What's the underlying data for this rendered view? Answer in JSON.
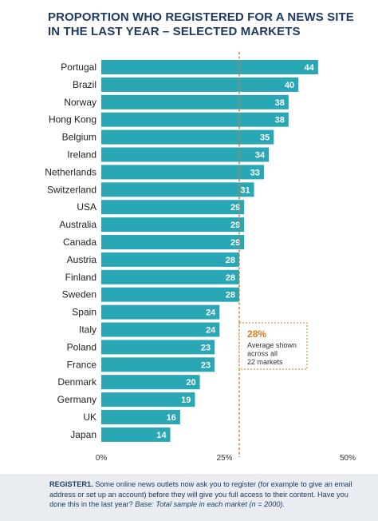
{
  "chart_data": {
    "type": "bar",
    "orientation": "horizontal",
    "title": "PROPORTION WHO REGISTERED FOR A NEWS SITE IN THE LAST YEAR – SELECTED MARKETS",
    "categories": [
      "Portugal",
      "Brazil",
      "Norway",
      "Hong Kong",
      "Belgium",
      "Ireland",
      "Netherlands",
      "Switzerland",
      "USA",
      "Australia",
      "Canada",
      "Austria",
      "Finland",
      "Sweden",
      "Spain",
      "Italy",
      "Poland",
      "France",
      "Denmark",
      "Germany",
      "UK",
      "Japan"
    ],
    "values": [
      44,
      40,
      38,
      38,
      35,
      34,
      33,
      31,
      29,
      29,
      29,
      28,
      28,
      28,
      24,
      24,
      23,
      23,
      20,
      19,
      16,
      14
    ],
    "xlim": [
      0,
      50
    ],
    "x_ticks": [
      "0%",
      "25%",
      "50%"
    ],
    "grid": false,
    "bar_color": "#2aa7b5",
    "reference_line": {
      "value": 28,
      "label_value": "28%",
      "label_lines": [
        "Average shown",
        "across all",
        "22 markets"
      ],
      "color": "#e07a1f"
    }
  },
  "footnote": {
    "code": "REGISTER1.",
    "text": " Some online news outlets now ask you to register (for example to give an email address or set up an account) before they will give you full access to their content. Have you done this in the last year? ",
    "base": "Base: Total sample in each market (n = 2000)."
  },
  "colors": {
    "title": "#1f3b63",
    "footnote_bg": "#e9ecf1"
  }
}
